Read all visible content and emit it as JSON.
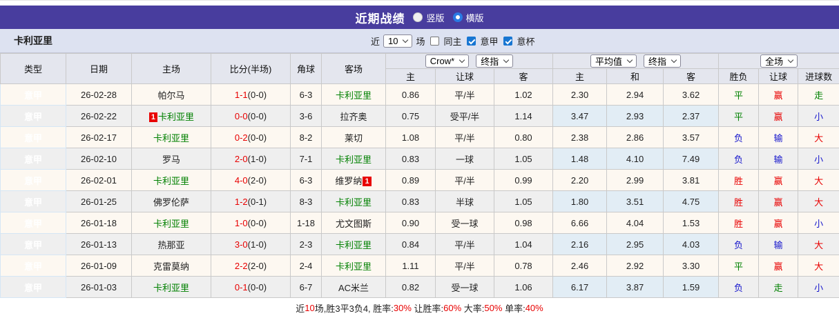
{
  "colors": {
    "topbar_bg": "#483d9e",
    "league_cell_bg": "#1b8ce8",
    "teambar_bg": "#dde2f1",
    "header_bg": "#e4e6ee",
    "row_odd_bg": "#fdf8f1",
    "row_even_bg": "#efefef",
    "avg_col_bg": "#e9f3fa",
    "win_red": "#e80000",
    "lose_blue": "#1515cc",
    "draw_green": "#008000",
    "checkbox_blue": "#1876d2"
  },
  "topbar": {
    "title": "近期战绩",
    "radio_vertical": "竖版",
    "radio_horizontal": "横版",
    "selected": "横版"
  },
  "teambar": {
    "team": "卡利亚里",
    "near_label": "近",
    "near_value": "10",
    "games_label": "场",
    "cb_same_home": "同主",
    "cb_league": "意甲",
    "cb_cup": "意杯",
    "cb_same_home_checked": false,
    "cb_league_checked": true,
    "cb_cup_checked": true
  },
  "table": {
    "highlight_team": "卡利亚里",
    "headers": {
      "type": "类型",
      "date": "日期",
      "home": "主场",
      "score": "比分(半场)",
      "corner": "角球",
      "away": "客场",
      "dd_crow": "Crow*",
      "dd_final1": "终指",
      "dd_avg": "平均值",
      "dd_final2": "终指",
      "dd_full": "全场",
      "sub": [
        "主",
        "让球",
        "客",
        "主",
        "和",
        "客",
        "胜负",
        "让球",
        "进球数"
      ]
    },
    "rows": [
      {
        "type": "意甲",
        "date": "26-02-28",
        "home": "帕尔马",
        "score": "1-1",
        "half": "(0-0)",
        "corner": "6-3",
        "away": "卡利亚里",
        "odds_home": "0.86",
        "handicap": "平/半",
        "odds_away": "1.02",
        "avg_home": "2.30",
        "avg_draw": "2.94",
        "avg_away": "3.62",
        "result": "平",
        "handicap_result": "赢",
        "goals_result": "走"
      },
      {
        "type": "意甲",
        "date": "26-02-22",
        "home": "卡利亚里",
        "home_badge": "1",
        "score": "0-0",
        "half": "(0-0)",
        "corner": "3-6",
        "away": "拉齐奥",
        "odds_home": "0.75",
        "handicap": "受平/半",
        "odds_away": "1.14",
        "avg_home": "3.47",
        "avg_draw": "2.93",
        "avg_away": "2.37",
        "result": "平",
        "handicap_result": "赢",
        "goals_result": "小"
      },
      {
        "type": "意甲",
        "date": "26-02-17",
        "home": "卡利亚里",
        "score": "0-2",
        "half": "(0-0)",
        "corner": "8-2",
        "away": "莱切",
        "odds_home": "1.08",
        "handicap": "平/半",
        "odds_away": "0.80",
        "avg_home": "2.38",
        "avg_draw": "2.86",
        "avg_away": "3.57",
        "result": "负",
        "handicap_result": "输",
        "goals_result": "大"
      },
      {
        "type": "意甲",
        "date": "26-02-10",
        "home": "罗马",
        "score": "2-0",
        "half": "(1-0)",
        "corner": "7-1",
        "away": "卡利亚里",
        "odds_home": "0.83",
        "handicap": "一球",
        "odds_away": "1.05",
        "avg_home": "1.48",
        "avg_draw": "4.10",
        "avg_away": "7.49",
        "result": "负",
        "handicap_result": "输",
        "goals_result": "小"
      },
      {
        "type": "意甲",
        "date": "26-02-01",
        "home": "卡利亚里",
        "score": "4-0",
        "half": "(2-0)",
        "corner": "6-3",
        "away": "维罗纳",
        "away_badge": "1",
        "odds_home": "0.89",
        "handicap": "平/半",
        "odds_away": "0.99",
        "avg_home": "2.20",
        "avg_draw": "2.99",
        "avg_away": "3.81",
        "result": "胜",
        "handicap_result": "赢",
        "goals_result": "大"
      },
      {
        "type": "意甲",
        "date": "26-01-25",
        "home": "佛罗伦萨",
        "score": "1-2",
        "half": "(0-1)",
        "corner": "8-3",
        "away": "卡利亚里",
        "odds_home": "0.83",
        "handicap": "半球",
        "odds_away": "1.05",
        "avg_home": "1.80",
        "avg_draw": "3.51",
        "avg_away": "4.75",
        "result": "胜",
        "handicap_result": "赢",
        "goals_result": "大"
      },
      {
        "type": "意甲",
        "date": "26-01-18",
        "home": "卡利亚里",
        "score": "1-0",
        "half": "(0-0)",
        "corner": "1-18",
        "away": "尤文图斯",
        "odds_home": "0.90",
        "handicap": "受一球",
        "odds_away": "0.98",
        "avg_home": "6.66",
        "avg_draw": "4.04",
        "avg_away": "1.53",
        "result": "胜",
        "handicap_result": "赢",
        "goals_result": "小"
      },
      {
        "type": "意甲",
        "date": "26-01-13",
        "home": "热那亚",
        "score": "3-0",
        "half": "(1-0)",
        "corner": "2-3",
        "away": "卡利亚里",
        "odds_home": "0.84",
        "handicap": "平/半",
        "odds_away": "1.04",
        "avg_home": "2.16",
        "avg_draw": "2.95",
        "avg_away": "4.03",
        "result": "负",
        "handicap_result": "输",
        "goals_result": "大"
      },
      {
        "type": "意甲",
        "date": "26-01-09",
        "home": "克雷莫纳",
        "score": "2-2",
        "half": "(2-0)",
        "corner": "2-4",
        "away": "卡利亚里",
        "odds_home": "1.11",
        "handicap": "平/半",
        "odds_away": "0.78",
        "avg_home": "2.46",
        "avg_draw": "2.92",
        "avg_away": "3.30",
        "result": "平",
        "handicap_result": "赢",
        "goals_result": "大"
      },
      {
        "type": "意甲",
        "date": "26-01-03",
        "home": "卡利亚里",
        "score": "0-1",
        "half": "(0-0)",
        "corner": "6-7",
        "away": "AC米兰",
        "odds_home": "0.82",
        "handicap": "受一球",
        "odds_away": "1.06",
        "avg_home": "6.17",
        "avg_draw": "3.87",
        "avg_away": "1.59",
        "result": "负",
        "handicap_result": "走",
        "goals_result": "小"
      }
    ]
  },
  "footer": {
    "t1": "近",
    "v1": "10",
    "t2": "场,胜3平3负4, 胜率:",
    "v2": "30%",
    "t3": " 让胜率:",
    "v3": "60%",
    "t4": " 大率:",
    "v4": "50%",
    "t5": " 单率:",
    "v5": "40%"
  }
}
